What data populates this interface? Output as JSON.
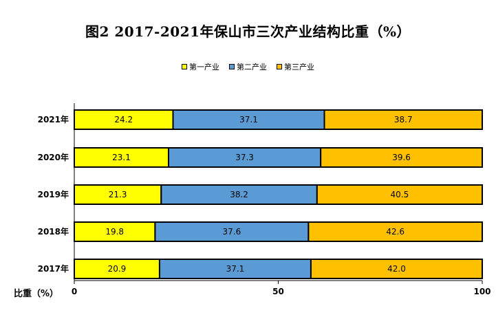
{
  "chart_data": {
    "type": "bar",
    "orientation": "horizontal",
    "stacked": true,
    "title": "图2   2017-2021年保山市三次产业结构比重（%）",
    "xlabel": "比重（%）",
    "ylabel": "",
    "xlim": [
      0,
      100
    ],
    "x_ticks": [
      "0",
      "50",
      "100"
    ],
    "categories": [
      "2021年",
      "2020年",
      "2019年",
      "2018年",
      "2017年"
    ],
    "series": [
      {
        "name": "第一产业",
        "color": "#FFFF00",
        "values": [
          24.2,
          23.1,
          21.3,
          19.8,
          20.9
        ]
      },
      {
        "name": "第二产业",
        "color": "#5B9BD5",
        "values": [
          37.1,
          37.3,
          38.2,
          37.6,
          37.1
        ]
      },
      {
        "name": "第三产业",
        "color": "#FFC000",
        "values": [
          38.7,
          39.6,
          40.5,
          42.6,
          42.0
        ]
      }
    ],
    "data_labels": [
      [
        "24.2",
        "37.1",
        "38.7"
      ],
      [
        "23.1",
        "37.3",
        "39.6"
      ],
      [
        "21.3",
        "38.2",
        "40.5"
      ],
      [
        "19.8",
        "37.6",
        "42.6"
      ],
      [
        "20.9",
        "37.1",
        "42.0"
      ]
    ],
    "legend_position": "top-center",
    "grid": false
  }
}
